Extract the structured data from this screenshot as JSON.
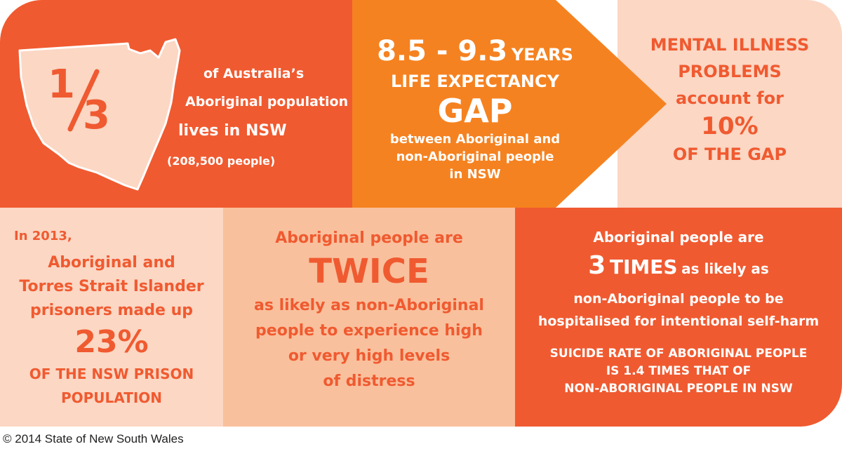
{
  "panel1": {
    "fraction_num": "1",
    "fraction_den": "3",
    "line1": "of Australia’s",
    "line2": "Aboriginal population",
    "line3": "lives in NSW",
    "line4": "(208,500 people)"
  },
  "panel2": {
    "years_value": "8.5 - 9.3",
    "years_unit": "YEARS",
    "line2": "LIFE EXPECTANCY",
    "line3": "GAP",
    "line4": "between Aboriginal and",
    "line5": "non-Aboriginal people",
    "line6": "in NSW"
  },
  "panel3": {
    "line1": "MENTAL ILLNESS",
    "line2": "PROBLEMS",
    "line3": "account for",
    "line4": "10%",
    "line5": "OF THE GAP"
  },
  "panel4": {
    "line1": "In 2013,",
    "line2": "Aboriginal and",
    "line3": "Torres Strait Islander",
    "line4": "prisoners made up",
    "line5": "23%",
    "line6": "OF THE NSW PRISON",
    "line7": "POPULATION"
  },
  "panel5": {
    "line1": "Aboriginal people are",
    "line2": "TWICE",
    "line3": "as likely as non-Aboriginal",
    "line4": "people to experience high",
    "line5": "or very high levels",
    "line6": "of distress"
  },
  "panel6": {
    "line1": "Aboriginal people are",
    "big_number": "3",
    "big_word": "TIMES",
    "line2_rest": "as likely as",
    "line3": "non-Aboriginal people to be",
    "line4": "hospitalised for intentional self-harm",
    "line5": "SUICIDE RATE OF ABORIGINAL PEOPLE",
    "line6": "IS 1.4 TIMES THAT OF",
    "line7": "NON-ABORIGINAL PEOPLE IN NSW"
  },
  "footer": {
    "copyright": "© 2014 State of New South Wales"
  },
  "colors": {
    "primary_orange": "#f05a30",
    "bright_orange": "#f58220",
    "light_peach": "#fbd7c4",
    "mid_peach": "#f9c09d"
  },
  "icons": {
    "map": "nsw-map-icon"
  }
}
